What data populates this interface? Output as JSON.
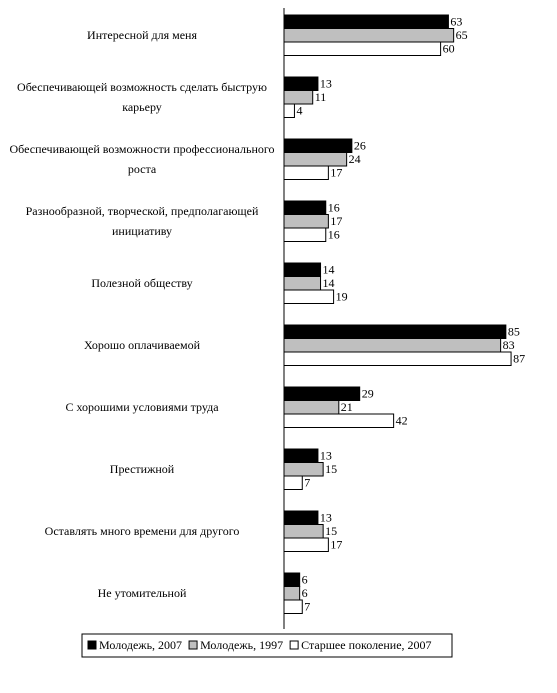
{
  "chart_data": {
    "type": "bar",
    "orientation": "horizontal",
    "categories": [
      "Интересной для меня",
      "Обеспечивающей возможность сделать быструю карьеру",
      "Обеспечивающей возможности профессионального роста",
      "Разнообразной, творческой, предполагающей инициативу",
      "Полезной обществу",
      "Хорошо оплачиваемой",
      "С хорошими условиями труда",
      "Престижной",
      "Оставлять много времени для другого",
      "Не утомительной"
    ],
    "series": [
      {
        "name": "Молодежь, 2007",
        "color": "#000000",
        "values": [
          63,
          13,
          26,
          16,
          14,
          85,
          29,
          13,
          13,
          6
        ]
      },
      {
        "name": "Молодежь, 1997",
        "color": "#bfbfbf",
        "values": [
          65,
          11,
          24,
          17,
          14,
          83,
          21,
          15,
          15,
          6
        ]
      },
      {
        "name": "Старшее поколение, 2007",
        "color": "#ffffff",
        "values": [
          60,
          4,
          17,
          16,
          19,
          87,
          42,
          7,
          17,
          7
        ]
      }
    ],
    "legend": "bottom"
  }
}
